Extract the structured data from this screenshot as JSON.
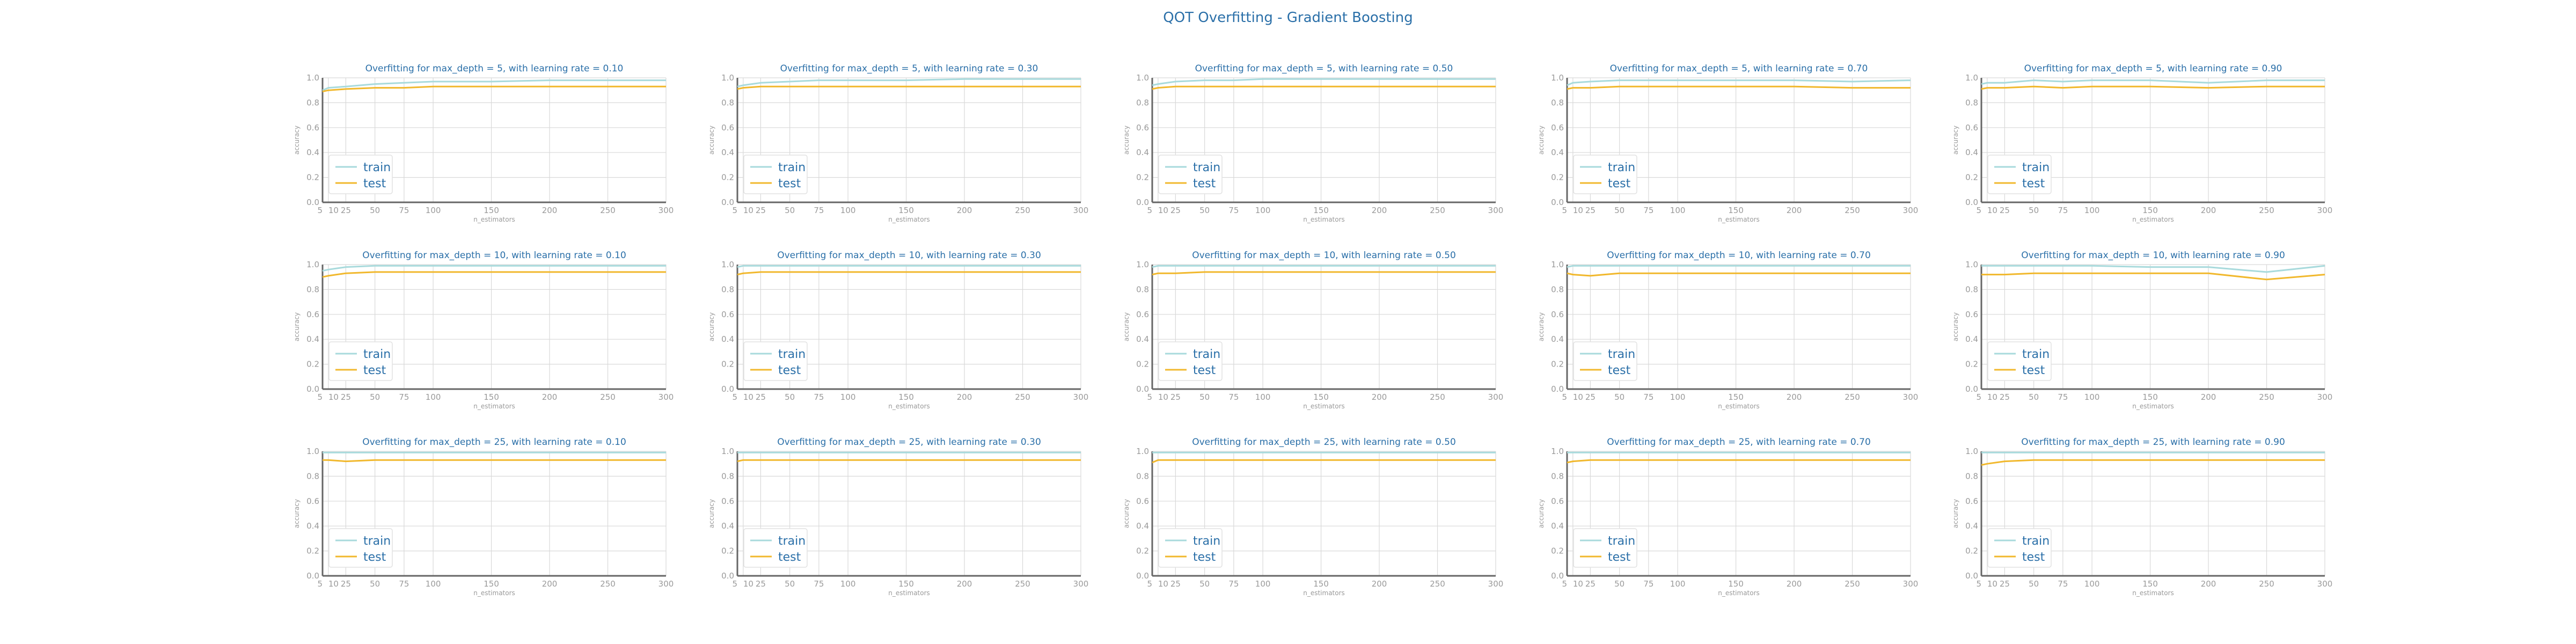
{
  "figure": {
    "title": "QOT Overfitting - Gradient Boosting"
  },
  "style": {
    "train_color": "#a8dadc",
    "test_color": "#f1b82d",
    "title_color": "#2a6fa8",
    "axis_color": "#666666",
    "tick_color": "#9a9a9a",
    "grid_color": "#d9d9d9"
  },
  "chart_data": [
    {
      "type": "line",
      "title": "Overfitting for max_depth = 5, with learning rate = 0.10",
      "xlabel": "n_estimators",
      "ylabel": "accuracy",
      "x": [
        5,
        10,
        25,
        50,
        75,
        100,
        150,
        200,
        250,
        300
      ],
      "xticks": [
        5,
        10,
        25,
        50,
        75,
        100,
        150,
        200,
        250,
        300
      ],
      "yticks": [
        0.0,
        0.2,
        0.4,
        0.6,
        0.8,
        1.0
      ],
      "xlim": [
        5,
        300
      ],
      "ylim": [
        0,
        1
      ],
      "grid": true,
      "legend": "bottom-left",
      "series": [
        {
          "name": "train",
          "values": [
            0.9,
            0.92,
            0.93,
            0.95,
            0.96,
            0.97,
            0.97,
            0.98,
            0.98,
            0.98
          ]
        },
        {
          "name": "test",
          "values": [
            0.89,
            0.9,
            0.91,
            0.92,
            0.92,
            0.93,
            0.93,
            0.93,
            0.93,
            0.93
          ]
        }
      ]
    },
    {
      "type": "line",
      "title": "Overfitting for max_depth = 5, with learning rate = 0.30",
      "xlabel": "n_estimators",
      "ylabel": "accuracy",
      "x": [
        5,
        10,
        25,
        50,
        75,
        100,
        150,
        200,
        250,
        300
      ],
      "xticks": [
        5,
        10,
        25,
        50,
        75,
        100,
        150,
        200,
        250,
        300
      ],
      "yticks": [
        0.0,
        0.2,
        0.4,
        0.6,
        0.8,
        1.0
      ],
      "xlim": [
        5,
        300
      ],
      "ylim": [
        0,
        1
      ],
      "grid": true,
      "legend": "bottom-left",
      "series": [
        {
          "name": "train",
          "values": [
            0.93,
            0.94,
            0.96,
            0.97,
            0.98,
            0.98,
            0.98,
            0.99,
            0.99,
            0.99
          ]
        },
        {
          "name": "test",
          "values": [
            0.91,
            0.92,
            0.93,
            0.93,
            0.93,
            0.93,
            0.93,
            0.93,
            0.93,
            0.93
          ]
        }
      ]
    },
    {
      "type": "line",
      "title": "Overfitting for max_depth = 5, with learning rate = 0.50",
      "xlabel": "n_estimators",
      "ylabel": "accuracy",
      "x": [
        5,
        10,
        25,
        50,
        75,
        100,
        150,
        200,
        250,
        300
      ],
      "xticks": [
        5,
        10,
        25,
        50,
        75,
        100,
        150,
        200,
        250,
        300
      ],
      "yticks": [
        0.0,
        0.2,
        0.4,
        0.6,
        0.8,
        1.0
      ],
      "xlim": [
        5,
        300
      ],
      "ylim": [
        0,
        1
      ],
      "grid": true,
      "legend": "bottom-left",
      "series": [
        {
          "name": "train",
          "values": [
            0.94,
            0.95,
            0.97,
            0.98,
            0.98,
            0.99,
            0.99,
            0.99,
            0.99,
            0.99
          ]
        },
        {
          "name": "test",
          "values": [
            0.91,
            0.92,
            0.93,
            0.93,
            0.93,
            0.93,
            0.93,
            0.93,
            0.93,
            0.93
          ]
        }
      ]
    },
    {
      "type": "line",
      "title": "Overfitting for max_depth = 5, with learning rate = 0.70",
      "xlabel": "n_estimators",
      "ylabel": "accuracy",
      "x": [
        5,
        10,
        25,
        50,
        75,
        100,
        150,
        200,
        250,
        300
      ],
      "xticks": [
        5,
        10,
        25,
        50,
        75,
        100,
        150,
        200,
        250,
        300
      ],
      "yticks": [
        0.0,
        0.2,
        0.4,
        0.6,
        0.8,
        1.0
      ],
      "xlim": [
        5,
        300
      ],
      "ylim": [
        0,
        1
      ],
      "grid": true,
      "legend": "bottom-left",
      "series": [
        {
          "name": "train",
          "values": [
            0.94,
            0.96,
            0.97,
            0.98,
            0.98,
            0.98,
            0.98,
            0.98,
            0.97,
            0.98
          ]
        },
        {
          "name": "test",
          "values": [
            0.91,
            0.92,
            0.92,
            0.93,
            0.93,
            0.93,
            0.93,
            0.93,
            0.92,
            0.92
          ]
        }
      ]
    },
    {
      "type": "line",
      "title": "Overfitting for max_depth = 5, with learning rate = 0.90",
      "xlabel": "n_estimators",
      "ylabel": "accuracy",
      "x": [
        5,
        10,
        25,
        50,
        75,
        100,
        150,
        200,
        250,
        300
      ],
      "xticks": [
        5,
        10,
        25,
        50,
        75,
        100,
        150,
        200,
        250,
        300
      ],
      "yticks": [
        0.0,
        0.2,
        0.4,
        0.6,
        0.8,
        1.0
      ],
      "xlim": [
        5,
        300
      ],
      "ylim": [
        0,
        1
      ],
      "grid": true,
      "legend": "bottom-left",
      "series": [
        {
          "name": "train",
          "values": [
            0.95,
            0.96,
            0.96,
            0.98,
            0.97,
            0.98,
            0.98,
            0.96,
            0.98,
            0.98
          ]
        },
        {
          "name": "test",
          "values": [
            0.91,
            0.92,
            0.92,
            0.93,
            0.92,
            0.93,
            0.93,
            0.92,
            0.93,
            0.93
          ]
        }
      ]
    },
    {
      "type": "line",
      "title": "Overfitting for max_depth = 10, with learning rate = 0.10",
      "xlabel": "n_estimators",
      "ylabel": "accuracy",
      "x": [
        5,
        10,
        25,
        50,
        75,
        100,
        150,
        200,
        250,
        300
      ],
      "xticks": [
        5,
        10,
        25,
        50,
        75,
        100,
        150,
        200,
        250,
        300
      ],
      "yticks": [
        0.0,
        0.2,
        0.4,
        0.6,
        0.8,
        1.0
      ],
      "xlim": [
        5,
        300
      ],
      "ylim": [
        0,
        1
      ],
      "grid": true,
      "legend": "bottom-left",
      "series": [
        {
          "name": "train",
          "values": [
            0.95,
            0.96,
            0.98,
            0.99,
            0.99,
            0.99,
            0.99,
            0.99,
            0.99,
            0.99
          ]
        },
        {
          "name": "test",
          "values": [
            0.9,
            0.91,
            0.93,
            0.94,
            0.94,
            0.94,
            0.94,
            0.94,
            0.94,
            0.94
          ]
        }
      ]
    },
    {
      "type": "line",
      "title": "Overfitting for max_depth = 10, with learning rate = 0.30",
      "xlabel": "n_estimators",
      "ylabel": "accuracy",
      "x": [
        5,
        10,
        25,
        50,
        75,
        100,
        150,
        200,
        250,
        300
      ],
      "xticks": [
        5,
        10,
        25,
        50,
        75,
        100,
        150,
        200,
        250,
        300
      ],
      "yticks": [
        0.0,
        0.2,
        0.4,
        0.6,
        0.8,
        1.0
      ],
      "xlim": [
        5,
        300
      ],
      "ylim": [
        0,
        1
      ],
      "grid": true,
      "legend": "bottom-left",
      "series": [
        {
          "name": "train",
          "values": [
            0.98,
            0.99,
            0.99,
            0.99,
            0.99,
            0.99,
            0.99,
            0.99,
            0.99,
            0.99
          ]
        },
        {
          "name": "test",
          "values": [
            0.92,
            0.93,
            0.94,
            0.94,
            0.94,
            0.94,
            0.94,
            0.94,
            0.94,
            0.94
          ]
        }
      ]
    },
    {
      "type": "line",
      "title": "Overfitting for max_depth = 10, with learning rate = 0.50",
      "xlabel": "n_estimators",
      "ylabel": "accuracy",
      "x": [
        5,
        10,
        25,
        50,
        75,
        100,
        150,
        200,
        250,
        300
      ],
      "xticks": [
        5,
        10,
        25,
        50,
        75,
        100,
        150,
        200,
        250,
        300
      ],
      "yticks": [
        0.0,
        0.2,
        0.4,
        0.6,
        0.8,
        1.0
      ],
      "xlim": [
        5,
        300
      ],
      "ylim": [
        0,
        1
      ],
      "grid": true,
      "legend": "bottom-left",
      "series": [
        {
          "name": "train",
          "values": [
            0.98,
            0.99,
            0.99,
            0.99,
            0.99,
            0.99,
            0.99,
            0.99,
            0.99,
            0.99
          ]
        },
        {
          "name": "test",
          "values": [
            0.92,
            0.93,
            0.93,
            0.94,
            0.94,
            0.94,
            0.94,
            0.94,
            0.94,
            0.94
          ]
        }
      ]
    },
    {
      "type": "line",
      "title": "Overfitting for max_depth = 10, with learning rate = 0.70",
      "xlabel": "n_estimators",
      "ylabel": "accuracy",
      "x": [
        5,
        10,
        25,
        50,
        75,
        100,
        150,
        200,
        250,
        300
      ],
      "xticks": [
        5,
        10,
        25,
        50,
        75,
        100,
        150,
        200,
        250,
        300
      ],
      "yticks": [
        0.0,
        0.2,
        0.4,
        0.6,
        0.8,
        1.0
      ],
      "xlim": [
        5,
        300
      ],
      "ylim": [
        0,
        1
      ],
      "grid": true,
      "legend": "bottom-left",
      "series": [
        {
          "name": "train",
          "values": [
            0.98,
            0.99,
            0.99,
            0.99,
            0.99,
            0.99,
            0.99,
            0.99,
            0.99,
            0.99
          ]
        },
        {
          "name": "test",
          "values": [
            0.93,
            0.92,
            0.91,
            0.93,
            0.93,
            0.93,
            0.93,
            0.93,
            0.93,
            0.93
          ]
        }
      ]
    },
    {
      "type": "line",
      "title": "Overfitting for max_depth = 10, with learning rate = 0.90",
      "xlabel": "n_estimators",
      "ylabel": "accuracy",
      "x": [
        5,
        10,
        25,
        50,
        75,
        100,
        150,
        200,
        250,
        300
      ],
      "xticks": [
        5,
        10,
        25,
        50,
        75,
        100,
        150,
        200,
        250,
        300
      ],
      "yticks": [
        0.0,
        0.2,
        0.4,
        0.6,
        0.8,
        1.0
      ],
      "xlim": [
        5,
        300
      ],
      "ylim": [
        0,
        1
      ],
      "grid": true,
      "legend": "bottom-left",
      "series": [
        {
          "name": "train",
          "values": [
            0.99,
            0.99,
            0.99,
            0.99,
            0.99,
            0.99,
            0.98,
            0.98,
            0.94,
            0.99
          ]
        },
        {
          "name": "test",
          "values": [
            0.92,
            0.92,
            0.92,
            0.93,
            0.93,
            0.93,
            0.93,
            0.93,
            0.88,
            0.92
          ]
        }
      ]
    },
    {
      "type": "line",
      "title": "Overfitting for max_depth = 25, with learning rate = 0.10",
      "xlabel": "n_estimators",
      "ylabel": "accuracy",
      "x": [
        5,
        10,
        25,
        50,
        75,
        100,
        150,
        200,
        250,
        300
      ],
      "xticks": [
        5,
        10,
        25,
        50,
        75,
        100,
        150,
        200,
        250,
        300
      ],
      "yticks": [
        0.0,
        0.2,
        0.4,
        0.6,
        0.8,
        1.0
      ],
      "xlim": [
        5,
        300
      ],
      "ylim": [
        0,
        1
      ],
      "grid": true,
      "legend": "bottom-left",
      "series": [
        {
          "name": "train",
          "values": [
            0.99,
            0.99,
            0.99,
            0.99,
            0.99,
            0.99,
            0.99,
            0.99,
            0.99,
            0.99
          ]
        },
        {
          "name": "test",
          "values": [
            0.93,
            0.93,
            0.92,
            0.93,
            0.93,
            0.93,
            0.93,
            0.93,
            0.93,
            0.93
          ]
        }
      ]
    },
    {
      "type": "line",
      "title": "Overfitting for max_depth = 25, with learning rate = 0.30",
      "xlabel": "n_estimators",
      "ylabel": "accuracy",
      "x": [
        5,
        10,
        25,
        50,
        75,
        100,
        150,
        200,
        250,
        300
      ],
      "xticks": [
        5,
        10,
        25,
        50,
        75,
        100,
        150,
        200,
        250,
        300
      ],
      "yticks": [
        0.0,
        0.2,
        0.4,
        0.6,
        0.8,
        1.0
      ],
      "xlim": [
        5,
        300
      ],
      "ylim": [
        0,
        1
      ],
      "grid": true,
      "legend": "bottom-left",
      "series": [
        {
          "name": "train",
          "values": [
            0.99,
            0.99,
            0.99,
            0.99,
            0.99,
            0.99,
            0.99,
            0.99,
            0.99,
            0.99
          ]
        },
        {
          "name": "test",
          "values": [
            0.92,
            0.93,
            0.93,
            0.93,
            0.93,
            0.93,
            0.93,
            0.93,
            0.93,
            0.93
          ]
        }
      ]
    },
    {
      "type": "line",
      "title": "Overfitting for max_depth = 25, with learning rate = 0.50",
      "xlabel": "n_estimators",
      "ylabel": "accuracy",
      "x": [
        5,
        10,
        25,
        50,
        75,
        100,
        150,
        200,
        250,
        300
      ],
      "xticks": [
        5,
        10,
        25,
        50,
        75,
        100,
        150,
        200,
        250,
        300
      ],
      "yticks": [
        0.0,
        0.2,
        0.4,
        0.6,
        0.8,
        1.0
      ],
      "xlim": [
        5,
        300
      ],
      "ylim": [
        0,
        1
      ],
      "grid": true,
      "legend": "bottom-left",
      "series": [
        {
          "name": "train",
          "values": [
            0.99,
            0.99,
            0.99,
            0.99,
            0.99,
            0.99,
            0.99,
            0.99,
            0.99,
            0.99
          ]
        },
        {
          "name": "test",
          "values": [
            0.91,
            0.93,
            0.93,
            0.93,
            0.93,
            0.93,
            0.93,
            0.93,
            0.93,
            0.93
          ]
        }
      ]
    },
    {
      "type": "line",
      "title": "Overfitting for max_depth = 25, with learning rate = 0.70",
      "xlabel": "n_estimators",
      "ylabel": "accuracy",
      "x": [
        5,
        10,
        25,
        50,
        75,
        100,
        150,
        200,
        250,
        300
      ],
      "xticks": [
        5,
        10,
        25,
        50,
        75,
        100,
        150,
        200,
        250,
        300
      ],
      "yticks": [
        0.0,
        0.2,
        0.4,
        0.6,
        0.8,
        1.0
      ],
      "xlim": [
        5,
        300
      ],
      "ylim": [
        0,
        1
      ],
      "grid": true,
      "legend": "bottom-left",
      "series": [
        {
          "name": "train",
          "values": [
            0.99,
            0.99,
            0.99,
            0.99,
            0.99,
            0.99,
            0.99,
            0.99,
            0.99,
            0.99
          ]
        },
        {
          "name": "test",
          "values": [
            0.91,
            0.92,
            0.93,
            0.93,
            0.93,
            0.93,
            0.93,
            0.93,
            0.93,
            0.93
          ]
        }
      ]
    },
    {
      "type": "line",
      "title": "Overfitting for max_depth = 25, with learning rate = 0.90",
      "xlabel": "n_estimators",
      "ylabel": "accuracy",
      "x": [
        5,
        10,
        25,
        50,
        75,
        100,
        150,
        200,
        250,
        300
      ],
      "xticks": [
        5,
        10,
        25,
        50,
        75,
        100,
        150,
        200,
        250,
        300
      ],
      "yticks": [
        0.0,
        0.2,
        0.4,
        0.6,
        0.8,
        1.0
      ],
      "xlim": [
        5,
        300
      ],
      "ylim": [
        0,
        1
      ],
      "grid": true,
      "legend": "bottom-left",
      "series": [
        {
          "name": "train",
          "values": [
            0.99,
            0.99,
            0.99,
            0.99,
            0.99,
            0.99,
            0.99,
            0.99,
            0.99,
            0.99
          ]
        },
        {
          "name": "test",
          "values": [
            0.89,
            0.9,
            0.92,
            0.93,
            0.93,
            0.93,
            0.93,
            0.93,
            0.93,
            0.93
          ]
        }
      ]
    }
  ]
}
